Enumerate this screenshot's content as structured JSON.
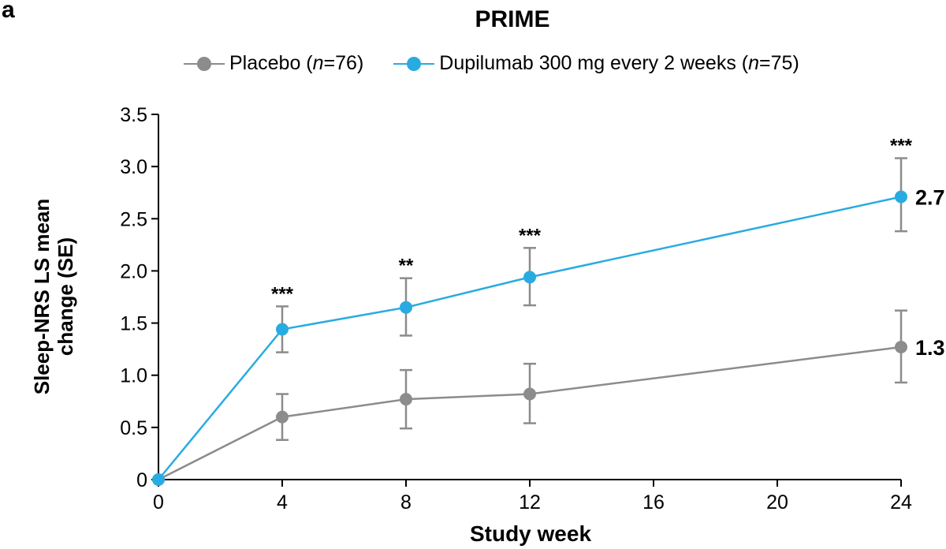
{
  "panel_label": "a",
  "chart_data": {
    "type": "line",
    "title": "PRIME",
    "xlabel": "Study week",
    "ylabel": [
      "Sleep-NRS LS mean",
      "change (SE)"
    ],
    "xlim": [
      0,
      24
    ],
    "ylim": [
      0,
      3.5
    ],
    "x_ticks": [
      0,
      4,
      8,
      12,
      16,
      20,
      24
    ],
    "x_tick_labels": [
      "0",
      "4",
      "8",
      "12",
      "16",
      "20",
      "24"
    ],
    "y_ticks": [
      0,
      0.5,
      1.0,
      1.5,
      2.0,
      2.5,
      3.0,
      3.5
    ],
    "y_tick_labels": [
      "0",
      "0.5",
      "1.0",
      "1.5",
      "2.0",
      "2.5",
      "3.0",
      "3.5"
    ],
    "grid": false,
    "legend_position": "top-center",
    "series": [
      {
        "name": "Placebo",
        "n_label": "n=76",
        "legend_prefix": "Placebo (",
        "legend_n": "n",
        "legend_suffix": "=76)",
        "color": "#8c8c8c",
        "x": [
          0,
          4,
          8,
          12,
          24
        ],
        "y": [
          0,
          0.6,
          0.77,
          0.82,
          1.27
        ],
        "err_low": [
          0,
          0.38,
          0.49,
          0.54,
          0.93
        ],
        "err_high": [
          0,
          0.82,
          1.05,
          1.11,
          1.62
        ],
        "end_label": "1.3"
      },
      {
        "name": "Dupilumab 300 mg every 2 weeks",
        "n_label": "n=75",
        "legend_prefix": "Dupilumab 300 mg every 2 weeks (",
        "legend_n": "n",
        "legend_suffix": "=75)",
        "color": "#29abe2",
        "x": [
          0,
          4,
          8,
          12,
          24
        ],
        "y": [
          0,
          1.44,
          1.65,
          1.94,
          2.71
        ],
        "err_low": [
          0,
          1.22,
          1.38,
          1.67,
          2.38
        ],
        "err_high": [
          0,
          1.66,
          1.93,
          2.22,
          3.08
        ],
        "end_label": "2.7"
      }
    ],
    "annotations": [
      {
        "x": 4,
        "text": "***"
      },
      {
        "x": 8,
        "text": "**"
      },
      {
        "x": 12,
        "text": "***"
      },
      {
        "x": 24,
        "text": "***"
      }
    ]
  }
}
